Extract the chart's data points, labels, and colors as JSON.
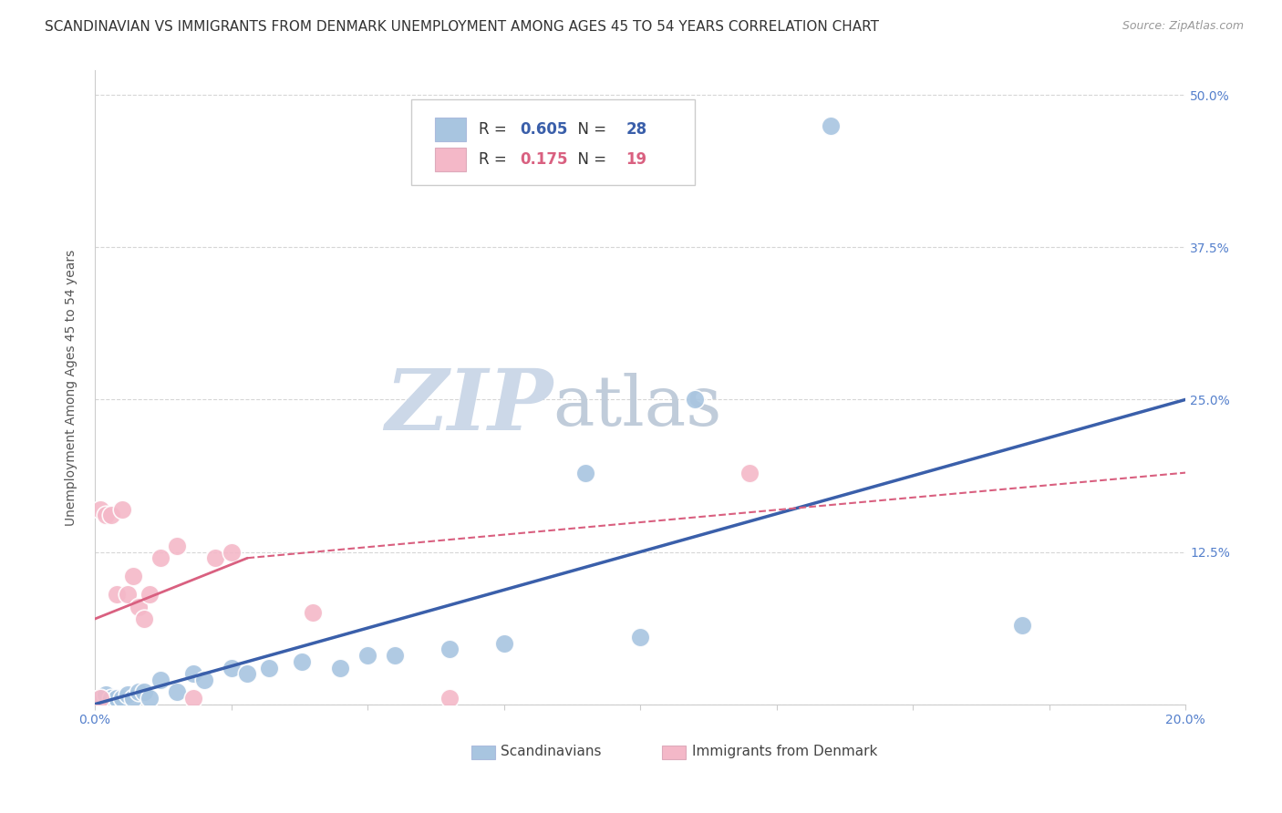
{
  "title": "SCANDINAVIAN VS IMMIGRANTS FROM DENMARK UNEMPLOYMENT AMONG AGES 45 TO 54 YEARS CORRELATION CHART",
  "source": "Source: ZipAtlas.com",
  "ylabel": "Unemployment Among Ages 45 to 54 years",
  "ytick_labels": [
    "",
    "12.5%",
    "25.0%",
    "37.5%",
    "50.0%"
  ],
  "ytick_values": [
    0,
    0.125,
    0.25,
    0.375,
    0.5
  ],
  "xlim": [
    0,
    0.2
  ],
  "ylim": [
    0,
    0.52
  ],
  "r_scandinavian": "0.605",
  "n_scandinavian": "28",
  "r_denmark": "0.175",
  "n_denmark": "19",
  "legend_label_blue": "Scandinavians",
  "legend_label_pink": "Immigrants from Denmark",
  "scandinavian_color": "#a8c5e0",
  "denmark_color": "#f4b8c8",
  "trend_blue_color": "#3a5faa",
  "trend_pink_color": "#d96080",
  "scandinavian_points": [
    [
      0.001,
      0.005
    ],
    [
      0.002,
      0.008
    ],
    [
      0.003,
      0.005
    ],
    [
      0.004,
      0.005
    ],
    [
      0.005,
      0.005
    ],
    [
      0.006,
      0.008
    ],
    [
      0.007,
      0.005
    ],
    [
      0.008,
      0.01
    ],
    [
      0.009,
      0.01
    ],
    [
      0.01,
      0.005
    ],
    [
      0.012,
      0.02
    ],
    [
      0.015,
      0.01
    ],
    [
      0.018,
      0.025
    ],
    [
      0.02,
      0.02
    ],
    [
      0.025,
      0.03
    ],
    [
      0.028,
      0.025
    ],
    [
      0.032,
      0.03
    ],
    [
      0.038,
      0.035
    ],
    [
      0.045,
      0.03
    ],
    [
      0.05,
      0.04
    ],
    [
      0.055,
      0.04
    ],
    [
      0.065,
      0.045
    ],
    [
      0.075,
      0.05
    ],
    [
      0.09,
      0.19
    ],
    [
      0.1,
      0.055
    ],
    [
      0.11,
      0.25
    ],
    [
      0.135,
      0.475
    ],
    [
      0.17,
      0.065
    ]
  ],
  "denmark_points": [
    [
      0.001,
      0.005
    ],
    [
      0.001,
      0.16
    ],
    [
      0.002,
      0.155
    ],
    [
      0.003,
      0.155
    ],
    [
      0.004,
      0.09
    ],
    [
      0.005,
      0.16
    ],
    [
      0.006,
      0.09
    ],
    [
      0.007,
      0.105
    ],
    [
      0.008,
      0.08
    ],
    [
      0.009,
      0.07
    ],
    [
      0.01,
      0.09
    ],
    [
      0.012,
      0.12
    ],
    [
      0.015,
      0.13
    ],
    [
      0.018,
      0.005
    ],
    [
      0.022,
      0.12
    ],
    [
      0.025,
      0.125
    ],
    [
      0.04,
      0.075
    ],
    [
      0.065,
      0.005
    ],
    [
      0.12,
      0.19
    ]
  ],
  "background_color": "#ffffff",
  "grid_color": "#cccccc",
  "watermark_zip": "ZIP",
  "watermark_atlas": "atlas",
  "watermark_color_zip": "#c8d8e8",
  "watermark_color_atlas": "#c8d0d8",
  "title_fontsize": 11,
  "axis_label_fontsize": 10,
  "tick_fontsize": 10,
  "legend_fontsize": 12
}
